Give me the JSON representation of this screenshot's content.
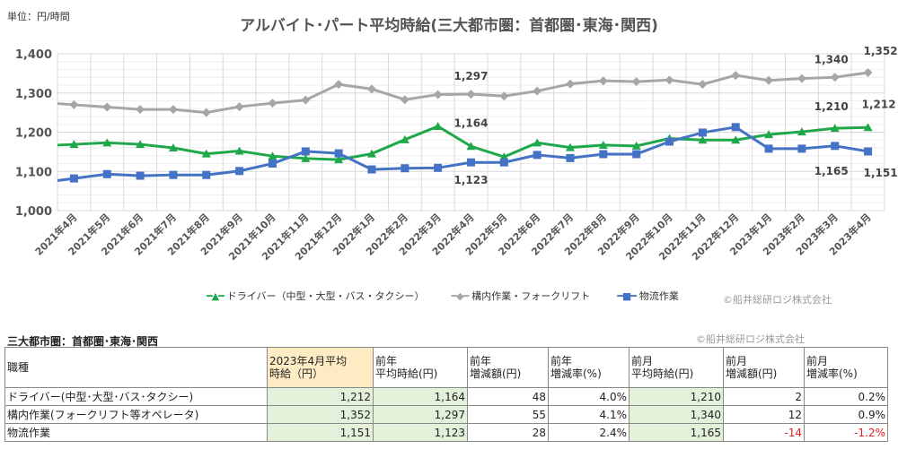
{
  "unit_label": "単位：円/時間",
  "title": "アルバイト･パート平均時給(三大都市圏：首都圏･東海･関西)",
  "copyright": "©船井総研ロジ株式会社",
  "chart_data": {
    "type": "line",
    "title": "アルバイト･パート平均時給(三大都市圏：首都圏･東海･関西)",
    "ylabel": "単位：円/時間",
    "ylim": [
      1000,
      1400
    ],
    "yticks": [
      "1,000",
      "1,100",
      "1,200",
      "1,300",
      "1,400"
    ],
    "grid": true,
    "legend": "bottom",
    "categories": [
      "2021年4月",
      "2021年5月",
      "2021年6月",
      "2021年7月",
      "2021年8月",
      "2021年9月",
      "2021年10月",
      "2021年11月",
      "2021年12月",
      "2022年1月",
      "2022年2月",
      "2022年3月",
      "2022年4月",
      "2022年5月",
      "2022年6月",
      "2022年7月",
      "2022年8月",
      "2022年9月",
      "2022年10月",
      "2022年11月",
      "2022年12月",
      "2023年1月",
      "2023年2月",
      "2023年3月",
      "2023年4月"
    ],
    "series": [
      {
        "name": "ドライバー（中型・大型・バス・タクシー）",
        "color": "#1fa84a",
        "marker": "triangle",
        "values": [
          1169,
          1173,
          1169,
          1160,
          1145,
          1152,
          1139,
          1133,
          1130,
          1145,
          1181,
          1215,
          1164,
          1137,
          1173,
          1161,
          1167,
          1165,
          1184,
          1180,
          1180,
          1194,
          1201,
          1210,
          1212
        ]
      },
      {
        "name": "構内作業・フォークリフト",
        "color": "#a6a6a6",
        "marker": "diamond",
        "values": [
          1270,
          1264,
          1258,
          1258,
          1250,
          1265,
          1274,
          1282,
          1322,
          1310,
          1283,
          1296,
          1297,
          1292,
          1305,
          1323,
          1331,
          1329,
          1333,
          1322,
          1345,
          1332,
          1337,
          1340,
          1352
        ]
      },
      {
        "name": "物流作業",
        "color": "#4472c4",
        "marker": "square",
        "values": [
          1082,
          1093,
          1089,
          1091,
          1091,
          1101,
          1120,
          1151,
          1146,
          1105,
          1108,
          1109,
          1123,
          1123,
          1142,
          1134,
          1144,
          1144,
          1176,
          1199,
          1213,
          1158,
          1158,
          1165,
          1151
        ]
      }
    ],
    "data_labels": [
      {
        "series": 0,
        "index": 12,
        "text": "1,164"
      },
      {
        "series": 0,
        "index": 23,
        "text": "1,210"
      },
      {
        "series": 0,
        "index": 24,
        "text": "1,212"
      },
      {
        "series": 1,
        "index": 12,
        "text": "1,297"
      },
      {
        "series": 1,
        "index": 23,
        "text": "1,340"
      },
      {
        "series": 1,
        "index": 24,
        "text": "1,352"
      },
      {
        "series": 2,
        "index": 12,
        "text": "1,123"
      },
      {
        "series": 2,
        "index": 23,
        "text": "1,165"
      },
      {
        "series": 2,
        "index": 24,
        "text": "1,151"
      }
    ]
  },
  "table": {
    "title": "三大都市圏：首都圏･東海･関西",
    "headers": [
      "職種",
      "2023年4月平均\n時給（円）",
      "前年\n平均時給(円)",
      "前年\n増減額(円)",
      "前年\n増減率(%)",
      "前月\n平均時給(円)",
      "前月\n増減額(円)",
      "前月\n増減率(%)"
    ],
    "rows": [
      [
        "ドライバー(中型･大型･バス･タクシー)",
        "1,212",
        "1,164",
        "48",
        "4.0%",
        "1,210",
        "2",
        "0.2%"
      ],
      [
        "構内作業(フォークリフト等オペレータ)",
        "1,352",
        "1,297",
        "55",
        "4.1%",
        "1,340",
        "12",
        "0.9%"
      ],
      [
        "物流作業",
        "1,151",
        "1,123",
        "28",
        "2.4%",
        "1,165",
        "-14",
        "-1.2%"
      ]
    ]
  }
}
